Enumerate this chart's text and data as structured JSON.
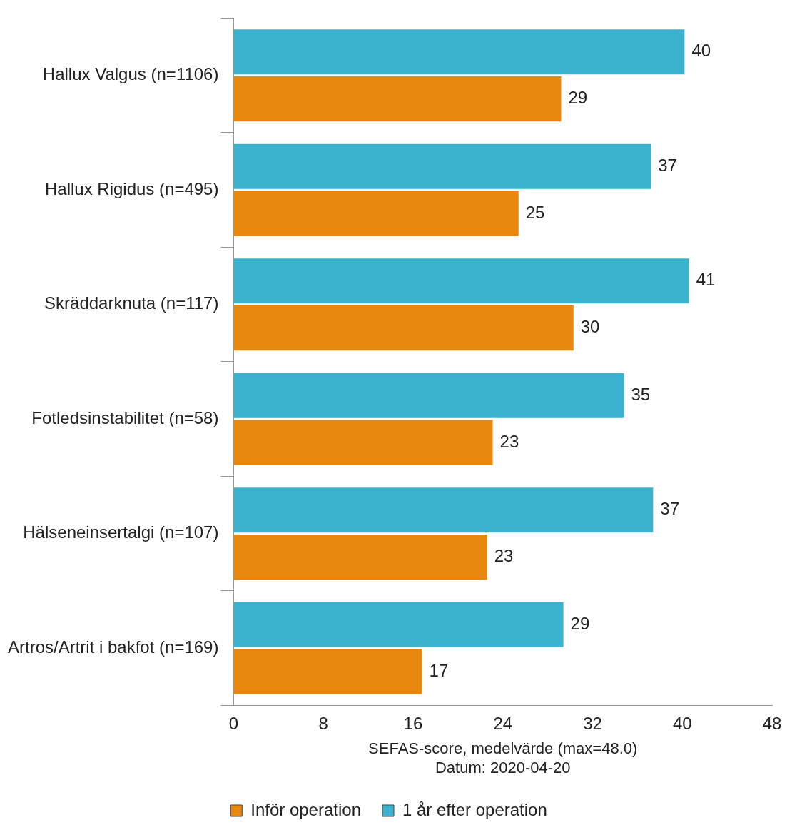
{
  "chart_data": {
    "type": "bar",
    "orientation": "horizontal",
    "categories": [
      "Hallux Valgus (n=1106)",
      "Hallux Rigidus (n=495)",
      "Skräddarknuta (n=117)",
      "Fotledsinstabilitet (n=58)",
      "Hälseneinsertalgi (n=107)",
      "Artros/Artrit i bakfot (n=169)"
    ],
    "series": [
      {
        "name": "1 år efter operation",
        "color": "#3bb3d0",
        "values": [
          40.2,
          37.2,
          40.6,
          34.8,
          37.4,
          29.4
        ],
        "value_labels": [
          "40",
          "37",
          "41",
          "35",
          "37",
          "29"
        ]
      },
      {
        "name": "Inför operation",
        "color": "#e8870e",
        "values": [
          29.2,
          25.4,
          30.3,
          23.1,
          22.6,
          16.8
        ],
        "value_labels": [
          "29",
          "25",
          "30",
          "23",
          "23",
          "17"
        ]
      }
    ],
    "xlim": [
      0,
      48
    ],
    "xticks": [
      0,
      8,
      16,
      24,
      32,
      40,
      48
    ],
    "xlabel": "SEFAS-score, medelvärde (max=48.0)",
    "annotations": [
      "Datum: 2020-04-20"
    ],
    "grid": false,
    "legend": "bottom"
  }
}
